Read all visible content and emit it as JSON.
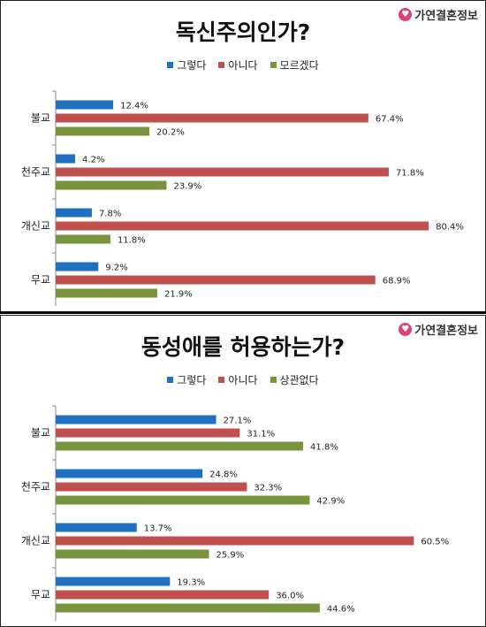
{
  "brand": "가연결혼정보",
  "chart_data": [
    {
      "type": "bar",
      "orientation": "horizontal",
      "title": "독신주의인가?",
      "categories": [
        "불교",
        "천주교",
        "개신교",
        "무교"
      ],
      "series": [
        {
          "name": "그렇다",
          "color": "#1f70c1",
          "values": [
            12.4,
            4.2,
            7.8,
            9.2
          ]
        },
        {
          "name": "아니다",
          "color": "#c0504d",
          "values": [
            67.4,
            71.8,
            80.4,
            68.9
          ]
        },
        {
          "name": "모르겠다",
          "color": "#77933c",
          "values": [
            20.2,
            23.9,
            11.8,
            21.9
          ]
        }
      ],
      "value_suffix": "%",
      "xlim": [
        0,
        90
      ],
      "grid": false,
      "legend": "top"
    },
    {
      "type": "bar",
      "orientation": "horizontal",
      "title": "동성애를 허용하는가?",
      "categories": [
        "불교",
        "천주교",
        "개신교",
        "무교"
      ],
      "series": [
        {
          "name": "그렇다",
          "color": "#1f70c1",
          "values": [
            27.1,
            24.8,
            13.7,
            19.3
          ]
        },
        {
          "name": "아니다",
          "color": "#c0504d",
          "values": [
            31.1,
            32.3,
            60.5,
            36.0
          ]
        },
        {
          "name": "상관없다",
          "color": "#77933c",
          "values": [
            41.8,
            42.9,
            25.9,
            44.6
          ]
        }
      ],
      "value_suffix": "%",
      "xlim": [
        0,
        75
      ],
      "grid": false,
      "legend": "top"
    }
  ]
}
